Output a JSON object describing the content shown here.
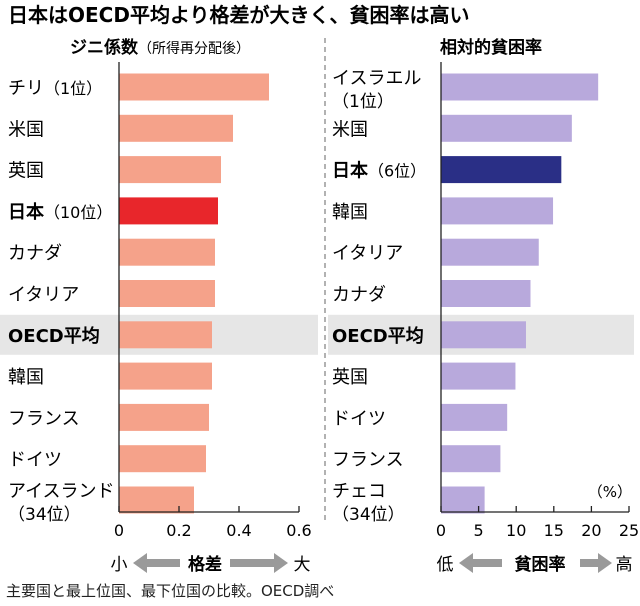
{
  "title": "日本はOECD平均より格差が大きく、貧困率は高い",
  "footer_note": "主要国と最上位国、最下位国の比較。OECD調べ",
  "colors": {
    "left_bar": "#f5a28a",
    "left_highlight": "#e8262b",
    "right_bar": "#b8a9dc",
    "right_highlight": "#2a2f86",
    "oecd_band": "#e6e6e6",
    "arrow": "#9a9a9a"
  },
  "chart_data": [
    {
      "type": "bar",
      "orientation": "horizontal",
      "title_main": "ジニ係数",
      "title_sub": "（所得再分配後）",
      "categories": [
        "チリ",
        "米国",
        "英国",
        "日本",
        "カナダ",
        "イタリア",
        "OECD平均",
        "韓国",
        "フランス",
        "ドイツ",
        "アイスランド"
      ],
      "category_notes": [
        "（1位）",
        "",
        "",
        "（10位）",
        "",
        "",
        "",
        "",
        "",
        "",
        "（34位）"
      ],
      "bold": [
        false,
        false,
        false,
        true,
        false,
        false,
        true,
        false,
        false,
        false,
        false
      ],
      "values": [
        0.5,
        0.38,
        0.34,
        0.33,
        0.32,
        0.32,
        0.31,
        0.31,
        0.3,
        0.29,
        0.25
      ],
      "xlim": [
        0,
        0.6
      ],
      "xticks": [
        0,
        0.2,
        0.4,
        0.6
      ],
      "xtick_labels": [
        "0",
        "0.2",
        "0.4",
        "0.6"
      ],
      "axis_low": "小",
      "axis_label": "格差",
      "axis_high": "大"
    },
    {
      "type": "bar",
      "orientation": "horizontal",
      "title_main": "相対的貧困率",
      "categories": [
        "イスラエル",
        "米国",
        "日本",
        "韓国",
        "イタリア",
        "カナダ",
        "OECD平均",
        "英国",
        "ドイツ",
        "フランス",
        "チェコ"
      ],
      "category_notes": [
        "（1位）",
        "",
        "（6位）",
        "",
        "",
        "",
        "",
        "",
        "",
        "",
        "（34位）"
      ],
      "bold": [
        false,
        false,
        true,
        false,
        false,
        false,
        true,
        false,
        false,
        false,
        false
      ],
      "values": [
        20.9,
        17.4,
        16.0,
        14.9,
        13.0,
        11.9,
        11.3,
        9.9,
        8.8,
        7.9,
        5.8
      ],
      "unit": "（%）",
      "xlim": [
        0,
        25
      ],
      "xticks": [
        0,
        5,
        10,
        15,
        20,
        25
      ],
      "xtick_labels": [
        "0",
        "5",
        "10",
        "15",
        "20",
        "25"
      ],
      "axis_low": "低",
      "axis_label": "貧困率",
      "axis_high": "高"
    }
  ]
}
